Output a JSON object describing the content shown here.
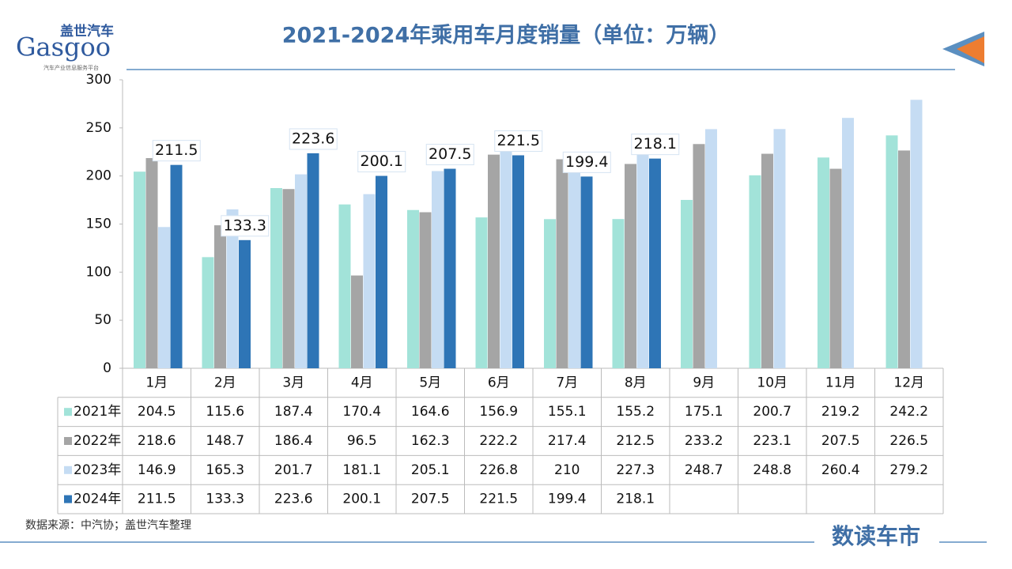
{
  "brand": {
    "name_cn": "盖世汽车",
    "name_en": "Gasgoo",
    "tagline": "汽车产业信息服务平台",
    "column": "数读车市"
  },
  "source": "数据来源：中汽协；盖世汽车整理",
  "chart_data": {
    "type": "bar",
    "title": "2021-2024年乘用车月度销量（单位：万辆）",
    "categories": [
      "1月",
      "2月",
      "3月",
      "4月",
      "5月",
      "6月",
      "7月",
      "8月",
      "9月",
      "10月",
      "11月",
      "12月"
    ],
    "series": [
      {
        "name": "2021年",
        "color": "#a2e3d9",
        "values": [
          204.5,
          115.6,
          187.4,
          170.4,
          164.6,
          156.9,
          155.1,
          155.2,
          175.1,
          200.7,
          219.2,
          242.2
        ]
      },
      {
        "name": "2022年",
        "color": "#a5a5a5",
        "values": [
          218.6,
          148.7,
          186.4,
          96.5,
          162.3,
          222.2,
          217.4,
          212.5,
          233.2,
          223.1,
          207.5,
          226.5
        ]
      },
      {
        "name": "2023年",
        "color": "#c5dcf3",
        "values": [
          146.9,
          165.3,
          201.7,
          181.1,
          205.1,
          226.8,
          210,
          227.3,
          248.7,
          248.8,
          260.4,
          279.2
        ]
      },
      {
        "name": "2024年",
        "color": "#2e75b6",
        "values": [
          211.5,
          133.3,
          223.6,
          200.1,
          207.5,
          221.5,
          199.4,
          218.1,
          null,
          null,
          null,
          null
        ]
      }
    ],
    "ylim": [
      0,
      300
    ],
    "yticks": [
      0,
      50,
      100,
      150,
      200,
      250,
      300
    ],
    "grid": false,
    "labeled_series": 3
  }
}
